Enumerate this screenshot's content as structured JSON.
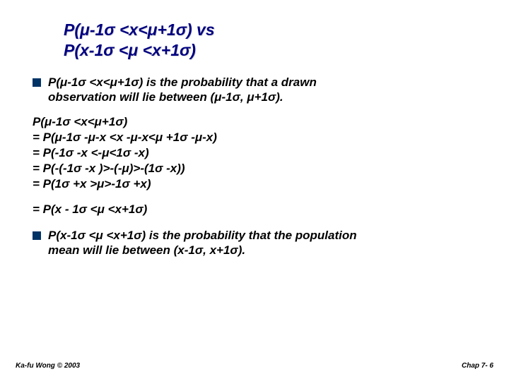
{
  "title_line1": "P(μ-1σ <x<μ+1σ)  vs",
  "title_line2": "P(x-1σ <μ <x+1σ)",
  "bullet1_a": "P(μ-1σ <x<μ+1σ)   is the probability that a drawn",
  "bullet1_b": "observation will lie between (μ-1σ, μ+1σ).",
  "math_l1": "P(μ-1σ <x<μ+1σ)",
  "math_l2": "= P(μ-1σ -μ-x <x -μ-x<μ +1σ -μ-x)",
  "math_l3": "= P(-1σ -x <-μ<1σ -x)",
  "math_l4": "= P(-(-1σ -x )>-(-μ)>-(1σ -x))",
  "math_l5": "= P(1σ +x >μ>-1σ +x)",
  "math_l6": "= P(x - 1σ <μ <x+1σ)",
  "bullet2_a": "P(x-1σ <μ <x+1σ) is the probability that the population",
  "bullet2_b": "mean will lie between (x-1σ, x+1σ).",
  "footer_left": "Ka-fu Wong © 2003",
  "footer_right": "Chap 7- 6",
  "colors": {
    "title": "#000080",
    "body": "#000000",
    "bullet_square": "#003366",
    "background": "#ffffff"
  },
  "typography": {
    "title_fontsize": 23,
    "body_fontsize": 17,
    "footer_fontsize": 10,
    "font_family": "Verdana",
    "weight": "bold",
    "style": "italic"
  }
}
